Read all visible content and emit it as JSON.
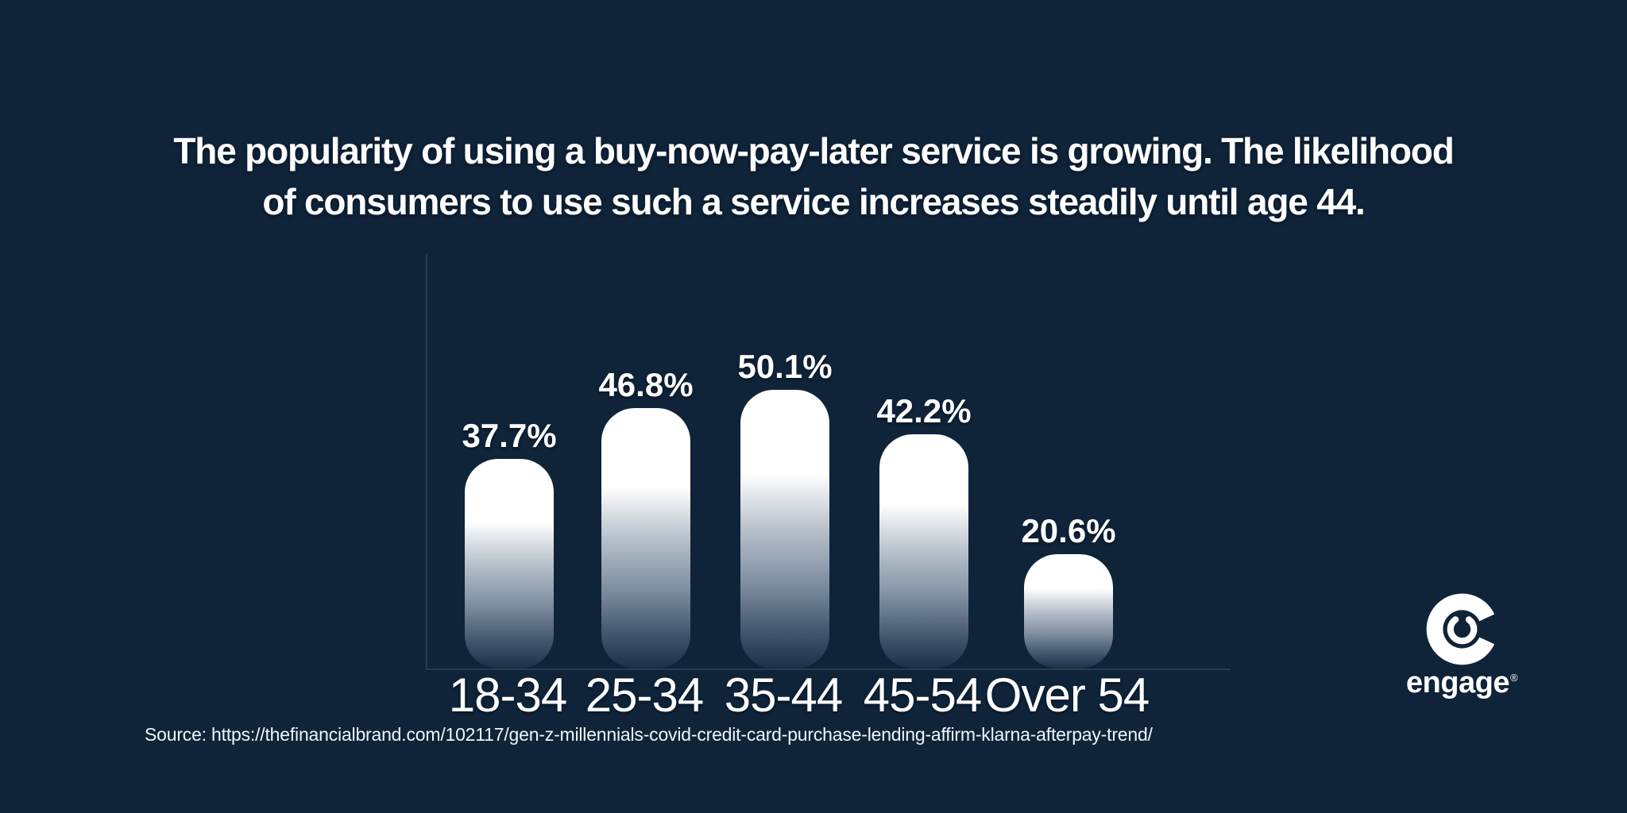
{
  "page": {
    "background_color": "#0f2339",
    "text_color": "#ffffff",
    "axis_color": "#263c54"
  },
  "title": {
    "lines": [
      "The popularity of using a buy-now-pay-later service is growing. The likelihood",
      "of consumers to use such a service increases steadily until age 44."
    ]
  },
  "chart_data": {
    "type": "bar",
    "categories": [
      "18-34",
      "25-34",
      "35-44",
      "45-54",
      "Over 54"
    ],
    "values": [
      37.7,
      46.8,
      50.1,
      42.2,
      20.6
    ],
    "value_labels": [
      "37.7%",
      "46.8%",
      "50.1%",
      "42.2%",
      "20.6%"
    ],
    "title": "",
    "xlabel": "",
    "ylabel": "",
    "ylim": [
      0,
      74.5
    ],
    "grid": false,
    "legend": false,
    "bar_fill_top_color": "#ffffff",
    "bar_fill_bottom_color": "#1c2f48"
  },
  "source": {
    "label": "Source: https://thefinancialbrand.com/102117/gen-z-millennials-covid-credit-card-purchase-lending-affirm-klarna-afterpay-trend/"
  },
  "logo": {
    "wordmark": "engage",
    "registered_mark": "®"
  }
}
